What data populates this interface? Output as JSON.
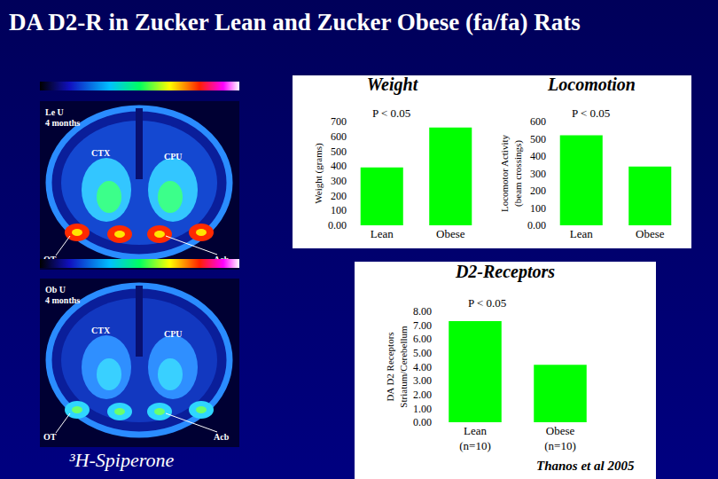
{
  "page": {
    "title": "DA D2-R in Zucker Lean and Zucker Obese (fa/fa) Rats",
    "tracer": "³H-Spiperone",
    "citation": "Thanos et al 2005",
    "images": [
      {
        "labels": [
          "Le U",
          "4 months"
        ],
        "regions": [
          "CTX",
          "CPU",
          "OT",
          "Acb"
        ]
      },
      {
        "labels": [
          "Ob U",
          "4 months"
        ],
        "regions": [
          "CTX",
          "CPU",
          "OT",
          "Acb"
        ]
      }
    ]
  },
  "chart_data": [
    {
      "type": "bar",
      "title": "Weight",
      "annotations": [
        "P < 0.05"
      ],
      "ylabel": "Weight (grams)",
      "categories": [
        "Lean",
        "Obese"
      ],
      "values": [
        390,
        660
      ],
      "color": "#00ff00",
      "ylim": [
        0,
        700
      ],
      "yticks": [
        {
          "value": 0,
          "label": "0.00"
        },
        100,
        200,
        300,
        400,
        500,
        600,
        700
      ],
      "grid": false
    },
    {
      "type": "bar",
      "title": "Locomotion",
      "annotations": [
        "P < 0.05"
      ],
      "ylabel": "Locomotor Activity (beam crossings)",
      "categories": [
        "Lean",
        "Obese"
      ],
      "values": [
        520,
        340
      ],
      "color": "#00ff00",
      "ylim": [
        0,
        600
      ],
      "yticks": [
        {
          "value": 0,
          "label": "0.00"
        },
        100,
        200,
        300,
        400,
        500,
        600
      ],
      "grid": false
    },
    {
      "type": "bar",
      "title": "D2-Receptors",
      "annotations": [
        "P < 0.05"
      ],
      "ylabel": "DA D2 Receptors Striatum/Cerebellum",
      "categories": [
        "Lean (n=10)",
        "Obese (n=10)"
      ],
      "values": [
        7.3,
        4.15
      ],
      "color": "#00ff00",
      "ylim": [
        0,
        8
      ],
      "yticks": [
        {
          "value": 0,
          "label": "0.00"
        },
        {
          "value": 1,
          "label": "1.00"
        },
        {
          "value": 2,
          "label": "2.00"
        },
        {
          "value": 3,
          "label": "3.00"
        },
        {
          "value": 4,
          "label": "4.00"
        },
        {
          "value": 5,
          "label": "5.00"
        },
        {
          "value": 6,
          "label": "6.00"
        },
        {
          "value": 7,
          "label": "7.00"
        },
        {
          "value": 8,
          "label": "8.00"
        }
      ],
      "grid": false
    }
  ]
}
